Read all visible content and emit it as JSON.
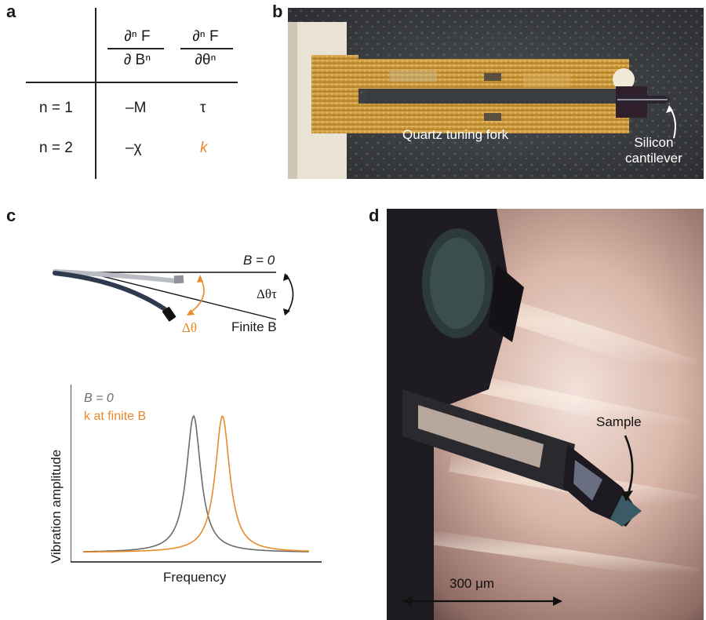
{
  "panels": {
    "a": {
      "letter": "a",
      "col1_num": "∂ⁿ F",
      "col1_den": "∂ Bⁿ",
      "col2_num": "∂ⁿ F",
      "col2_den": "∂θⁿ",
      "rows": [
        {
          "n": "n = 1",
          "c1": "–M",
          "c2": "τ"
        },
        {
          "n": "n = 2",
          "c1": "–χ",
          "c2": "k"
        }
      ],
      "highlight_color": "#e8892a"
    },
    "b": {
      "letter": "b",
      "label_fork": "Quartz tuning fork",
      "label_cantilever_1": "Silicon",
      "label_cantilever_2": "cantilever"
    },
    "c": {
      "letter": "c",
      "label_b0": "B = 0",
      "label_finite_b": "Finite B",
      "label_dtheta": "Δθ",
      "label_dtheta_tau": "Δθτ",
      "legend_b0": "B = 0",
      "legend_k": "k at finite B",
      "ylabel": "Vibration amplitude",
      "xlabel": "Frequency",
      "color_gray": "#6b6b6b",
      "color_orange": "#e8892a"
    },
    "d": {
      "letter": "d",
      "label_sample": "Sample",
      "scale_bar": "300 μm"
    }
  },
  "chart_data": {
    "type": "line",
    "title": "",
    "xlabel": "Frequency",
    "ylabel": "Vibration amplitude",
    "series": [
      {
        "name": "B = 0",
        "center": 0.49,
        "color": "#6b6b6b"
      },
      {
        "name": "k at finite B",
        "center": 0.605,
        "color": "#e8892a"
      }
    ],
    "grid": false,
    "legend": "top-left"
  }
}
